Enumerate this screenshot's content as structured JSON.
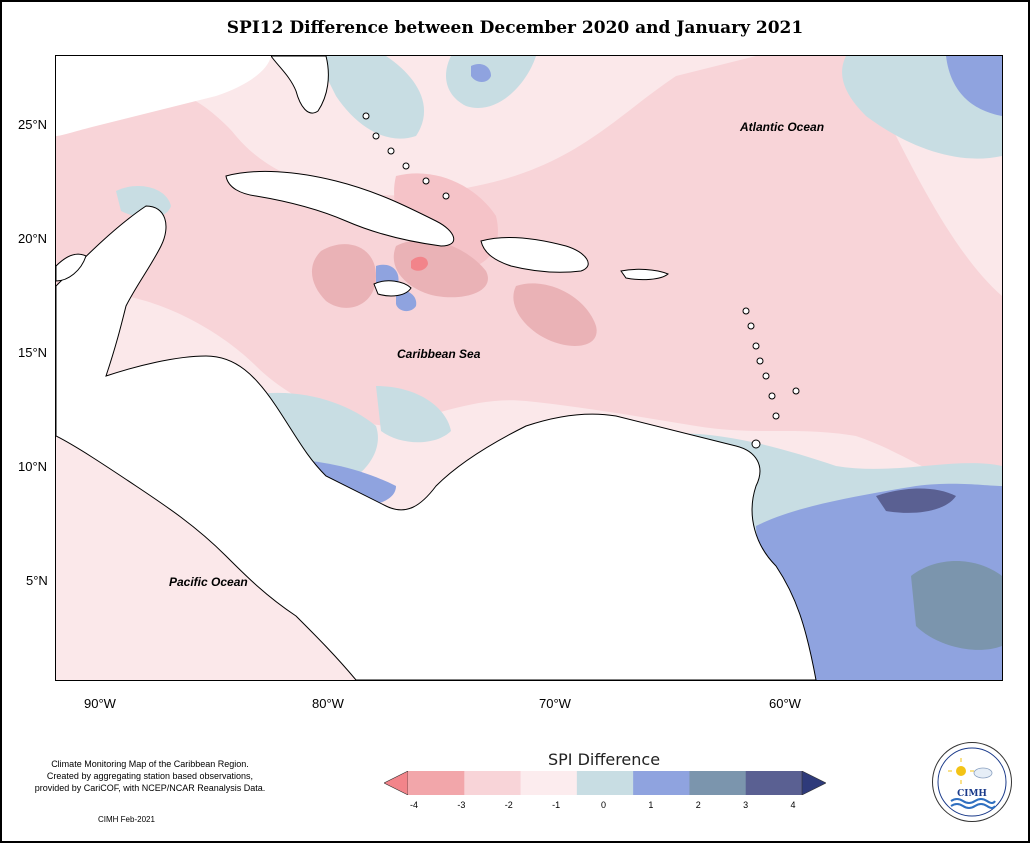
{
  "title": "SPI12 Difference between December 2020 and January 2021",
  "map": {
    "lat_labels": [
      "25°N",
      "20°N",
      "15°N",
      "10°N",
      "5°N"
    ],
    "lon_labels": [
      "90°W",
      "80°W",
      "70°W",
      "60°W"
    ],
    "region_labels": {
      "atlantic": "Atlantic Ocean",
      "caribbean": "Caribbean Sea",
      "pacific": "Pacific Ocean"
    },
    "colors": {
      "land": "#ffffff",
      "coast": "#000000"
    }
  },
  "legend": {
    "title": "SPI Difference",
    "ticks": [
      "-4",
      "-3",
      "-2",
      "-1",
      "0",
      "1",
      "2",
      "3",
      "4"
    ],
    "colors": [
      "#f2848a",
      "#f2a6aa",
      "#f8d4d8",
      "#fcecee",
      "#c8dde3",
      "#8fa3df",
      "#7b95ad",
      "#5a6092",
      "#2e3a7a"
    ]
  },
  "credits": {
    "line1": "Climate Monitoring Map of the Caribbean Region.",
    "line2": "Created by aggregating station based observations,",
    "line3": "provided by CariCOF, with NCEP/NCAR Reanalysis Data.",
    "note": "CIMH Feb-2021"
  },
  "logo": {
    "text": "CIMH"
  }
}
